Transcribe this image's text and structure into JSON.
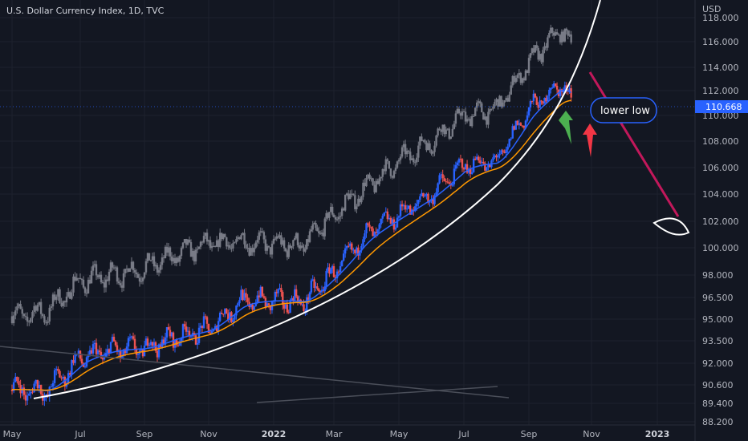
{
  "header": {
    "title": "U.S. Dollar Currency Index, 1D, TVC"
  },
  "axis": {
    "currency": "USD"
  },
  "last_price": {
    "label": "110.668",
    "value": 110.668,
    "color": "#2962ff"
  },
  "annotation": {
    "text": "lower low"
  },
  "colors": {
    "background": "#131722",
    "candle_up": "#2962ff",
    "candle_down": "#ef5350",
    "ghost": "#787b86",
    "ema_fast": "#2962ff",
    "ema_slow": "#ff9800",
    "curve": "#ffffff",
    "trend_arrow": "#c2185b",
    "green_arrow": "#4caf50",
    "red_arrow": "#f23645"
  },
  "chart_data": {
    "type": "line",
    "title": "U.S. Dollar Currency Index, 1D, TVC",
    "ylim": [
      88.5,
      118.5
    ],
    "y_scale": "nonlinear (TradingView price scale)",
    "y_ticks": [
      "118.000",
      "116.000",
      "114.000",
      "112.000",
      "110.000",
      "108.000",
      "106.000",
      "104.000",
      "102.000",
      "100.000",
      "98.000",
      "96.500",
      "95.000",
      "93.500",
      "92.000",
      "90.600",
      "89.400",
      "88.200"
    ],
    "x_ticks": [
      "May",
      "Jul",
      "Sep",
      "Nov",
      "2022",
      "Mar",
      "May",
      "Jul",
      "Sep",
      "Nov",
      "2023"
    ],
    "series": [
      {
        "name": "",
        "x": [
          "2021-05",
          "2021-06",
          "2021-07",
          "2021-08",
          "2021-09",
          "2021-10",
          "2021-11",
          "2021-12",
          "2022-01",
          "2022-02",
          "2022-03",
          "2022-04",
          "2022-05",
          "2022-06",
          "2022-07",
          "2022-08",
          "2022-09",
          "2022-10"
        ],
        "values": [
          90.3,
          90.2,
          92.3,
          92.9,
          93.0,
          93.8,
          94.3,
          96.2,
          96.3,
          96.2,
          98.2,
          101.0,
          102.5,
          104.0,
          106.2,
          106.4,
          110.5,
          112.5
        ]
      },
      {
        "name": "",
        "x": [
          "2021-05",
          "2021-06",
          "2021-07",
          "2021-08",
          "2021-09",
          "2021-10",
          "2021-11",
          "2021-12",
          "2022-01",
          "2022-02",
          "2022-03",
          "2022-04",
          "2022-05",
          "2022-06",
          "2022-07",
          "2022-08",
          "2022-09",
          "2022-10"
        ],
        "values": [
          95.2,
          95.5,
          97.6,
          98.0,
          98.5,
          99.5,
          100.3,
          100.5,
          100.3,
          100.2,
          102.5,
          104.5,
          106.5,
          108.0,
          110.0,
          110.5,
          114.3,
          117.0
        ]
      }
    ],
    "legend": "none",
    "grid": true
  }
}
